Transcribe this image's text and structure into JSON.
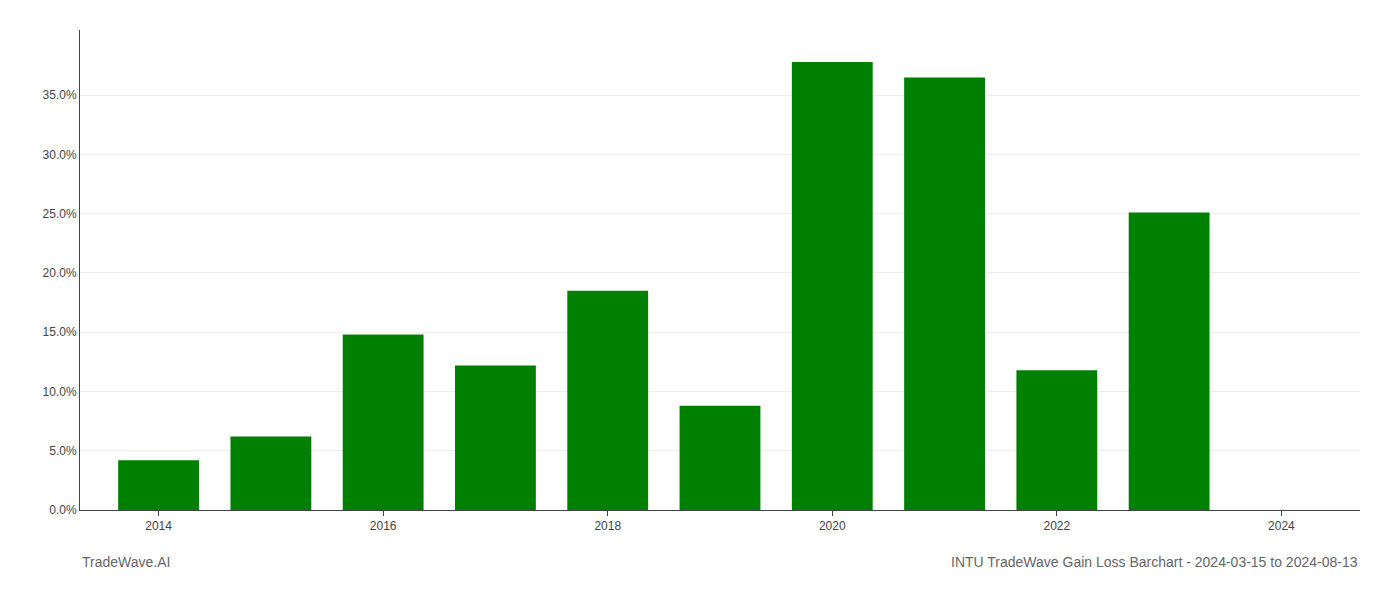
{
  "chart_data": {
    "type": "bar",
    "title": "INTU TradeWave Gain Loss Barchart - 2024-03-15 to 2024-08-13",
    "annotations": [
      "TradeWave.AI"
    ],
    "x": [
      2014,
      2015,
      2016,
      2017,
      2018,
      2019,
      2020,
      2021,
      2022,
      2023
    ],
    "values": [
      0.042,
      0.062,
      0.148,
      0.122,
      0.185,
      0.088,
      0.378,
      0.365,
      0.118,
      0.251
    ],
    "color": "#008000",
    "xlim": [
      2013.3,
      2024.7
    ],
    "xticks": [
      2014,
      2016,
      2018,
      2020,
      2022,
      2024
    ],
    "ylim": [
      0,
      0.405
    ],
    "yticks": [
      {
        "value": 0.0,
        "label": "0.0%"
      },
      {
        "value": 0.05,
        "label": "5.0%"
      },
      {
        "value": 0.1,
        "label": "10.0%"
      },
      {
        "value": 0.15,
        "label": "15.0%"
      },
      {
        "value": 0.2,
        "label": "20.0%"
      },
      {
        "value": 0.25,
        "label": "25.0%"
      },
      {
        "value": 0.3,
        "label": "30.0%"
      },
      {
        "value": 0.35,
        "label": "35.0%"
      }
    ],
    "grid": true
  }
}
